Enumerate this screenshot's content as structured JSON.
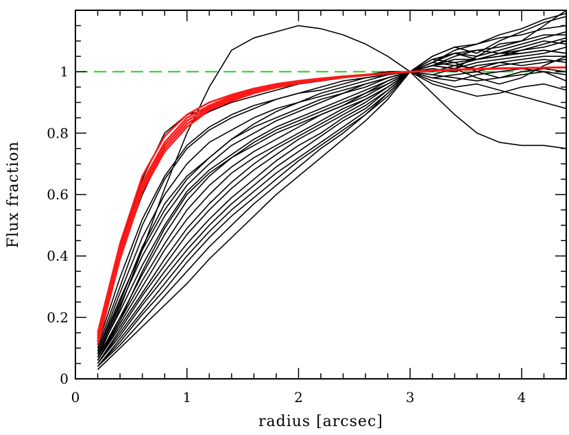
{
  "chart_data": {
    "type": "line",
    "title": "",
    "xlabel": "radius [arcsec]",
    "ylabel": "Flux fraction",
    "xlim": [
      0,
      4.4
    ],
    "ylim": [
      0,
      1.2
    ],
    "xticks": [
      0,
      1,
      2,
      3,
      4
    ],
    "yticks": [
      0,
      0.2,
      0.4,
      0.6,
      0.8,
      1
    ],
    "xtick_labels": [
      "0",
      "1",
      "2",
      "3",
      "4"
    ],
    "ytick_labels": [
      "0",
      "0.2",
      "0.4",
      "0.6",
      "0.8",
      "1"
    ],
    "grid": false,
    "legend": "none",
    "reference_line": {
      "y": 1.0,
      "style": "dashed",
      "color": "#22cc22"
    },
    "x": [
      0.2,
      0.4,
      0.6,
      0.8,
      1.0,
      1.2,
      1.4,
      1.6,
      1.8,
      2.0,
      2.2,
      2.4,
      2.6,
      2.8,
      3.0,
      3.2,
      3.4,
      3.6,
      3.8,
      4.0,
      4.2,
      4.4
    ],
    "black_series": [
      {
        "values": [
          0.14,
          0.43,
          0.65,
          0.8,
          0.86,
          0.88,
          0.91,
          0.93,
          0.95,
          0.96,
          0.97,
          0.98,
          0.99,
          1.0,
          1.0,
          1.03,
          1.06,
          1.04,
          1.05,
          1.06,
          1.07,
          1.06
        ]
      },
      {
        "values": [
          0.12,
          0.4,
          0.6,
          0.75,
          0.83,
          0.87,
          0.9,
          0.92,
          0.94,
          0.96,
          0.97,
          0.98,
          0.99,
          1.0,
          1.0,
          1.02,
          1.01,
          1.05,
          1.09,
          1.1,
          1.12,
          1.12
        ]
      },
      {
        "values": [
          0.11,
          0.33,
          0.52,
          0.66,
          0.76,
          0.82,
          0.86,
          0.89,
          0.91,
          0.93,
          0.95,
          0.97,
          0.98,
          0.99,
          1.0,
          1.04,
          1.03,
          1.0,
          1.02,
          1.03,
          1.04,
          1.03
        ]
      },
      {
        "values": [
          0.1,
          0.3,
          0.5,
          0.65,
          0.75,
          0.81,
          0.85,
          0.88,
          0.91,
          0.93,
          0.94,
          0.96,
          0.98,
          0.99,
          1.0,
          0.96,
          0.94,
          0.92,
          0.93,
          0.95,
          0.96,
          0.94
        ]
      },
      {
        "values": [
          0.09,
          0.28,
          0.46,
          0.6,
          0.7,
          0.77,
          0.81,
          0.85,
          0.88,
          0.9,
          0.93,
          0.95,
          0.97,
          0.99,
          1.0,
          1.05,
          1.08,
          1.06,
          1.1,
          1.13,
          1.16,
          1.18
        ]
      },
      {
        "values": [
          0.09,
          0.26,
          0.42,
          0.55,
          0.65,
          0.72,
          0.78,
          0.82,
          0.85,
          0.88,
          0.91,
          0.93,
          0.96,
          0.98,
          1.0,
          1.02,
          1.05,
          1.07,
          1.08,
          1.1,
          1.15,
          1.2
        ]
      },
      {
        "values": [
          0.08,
          0.24,
          0.4,
          0.53,
          0.63,
          0.7,
          0.76,
          0.8,
          0.84,
          0.87,
          0.9,
          0.93,
          0.95,
          0.98,
          1.0,
          0.98,
          0.97,
          0.99,
          1.0,
          1.01,
          1.0,
          0.99
        ]
      },
      {
        "values": [
          0.08,
          0.22,
          0.37,
          0.5,
          0.61,
          0.68,
          0.73,
          0.78,
          0.82,
          0.85,
          0.88,
          0.91,
          0.94,
          0.97,
          1.0,
          1.03,
          1.06,
          1.07,
          1.06,
          1.08,
          1.1,
          1.09
        ]
      },
      {
        "values": [
          0.07,
          0.2,
          0.34,
          0.47,
          0.58,
          0.66,
          0.72,
          0.77,
          0.81,
          0.84,
          0.87,
          0.9,
          0.93,
          0.97,
          1.0,
          0.99,
          1.01,
          1.03,
          1.04,
          1.05,
          1.06,
          1.08
        ]
      },
      {
        "values": [
          0.07,
          0.19,
          0.32,
          0.44,
          0.55,
          0.63,
          0.69,
          0.74,
          0.78,
          0.82,
          0.86,
          0.89,
          0.92,
          0.96,
          1.0,
          0.97,
          0.95,
          0.96,
          0.94,
          0.92,
          0.9,
          0.88
        ]
      },
      {
        "values": [
          0.06,
          0.18,
          0.3,
          0.42,
          0.52,
          0.6,
          0.67,
          0.72,
          0.76,
          0.8,
          0.84,
          0.88,
          0.91,
          0.95,
          1.0,
          1.02,
          1.04,
          1.04,
          1.05,
          1.07,
          1.09,
          1.11
        ]
      },
      {
        "values": [
          0.06,
          0.17,
          0.28,
          0.39,
          0.49,
          0.57,
          0.64,
          0.7,
          0.75,
          0.79,
          0.83,
          0.87,
          0.91,
          0.95,
          1.0,
          1.01,
          1.0,
          1.02,
          1.03,
          1.02,
          1.03,
          1.04
        ]
      },
      {
        "values": [
          0.05,
          0.16,
          0.27,
          0.37,
          0.47,
          0.55,
          0.62,
          0.68,
          0.73,
          0.78,
          0.82,
          0.86,
          0.9,
          0.95,
          1.0,
          1.03,
          1.07,
          1.09,
          1.11,
          1.12,
          1.14,
          1.15
        ]
      },
      {
        "values": [
          0.05,
          0.15,
          0.25,
          0.35,
          0.44,
          0.52,
          0.59,
          0.65,
          0.71,
          0.76,
          0.8,
          0.85,
          0.89,
          0.94,
          1.0,
          0.98,
          0.99,
          1.0,
          0.98,
          0.99,
          1.0,
          0.97
        ]
      },
      {
        "values": [
          0.05,
          0.14,
          0.24,
          0.33,
          0.42,
          0.5,
          0.57,
          0.63,
          0.69,
          0.74,
          0.79,
          0.84,
          0.88,
          0.94,
          1.0,
          1.04,
          1.06,
          1.05,
          1.07,
          1.09,
          1.11,
          1.13
        ]
      },
      {
        "values": [
          0.04,
          0.13,
          0.22,
          0.31,
          0.4,
          0.48,
          0.55,
          0.61,
          0.67,
          0.72,
          0.77,
          0.82,
          0.87,
          0.93,
          1.0,
          1.0,
          1.02,
          1.01,
          1.03,
          1.04,
          1.05,
          1.05
        ]
      },
      {
        "values": [
          0.04,
          0.12,
          0.21,
          0.29,
          0.38,
          0.46,
          0.53,
          0.59,
          0.65,
          0.71,
          0.76,
          0.81,
          0.86,
          0.93,
          1.0,
          1.05,
          1.08,
          1.09,
          1.12,
          1.14,
          1.17,
          1.19
        ]
      },
      {
        "values": [
          0.04,
          0.11,
          0.19,
          0.27,
          0.35,
          0.43,
          0.5,
          0.57,
          0.63,
          0.69,
          0.75,
          0.8,
          0.86,
          0.92,
          1.0,
          0.99,
          0.98,
          0.97,
          0.98,
          1.0,
          1.01,
          1.0
        ]
      },
      {
        "values": [
          0.03,
          0.1,
          0.17,
          0.24,
          0.31,
          0.39,
          0.46,
          0.53,
          0.6,
          0.66,
          0.72,
          0.78,
          0.84,
          0.91,
          1.0,
          1.02,
          1.03,
          1.04,
          1.06,
          1.07,
          1.08,
          1.1
        ]
      },
      {
        "values": [
          0.07,
          0.23,
          0.42,
          0.62,
          0.8,
          0.95,
          1.07,
          1.11,
          1.13,
          1.15,
          1.14,
          1.12,
          1.09,
          1.05,
          1.0,
          0.93,
          0.86,
          0.8,
          0.77,
          0.76,
          0.76,
          0.75
        ]
      },
      {
        "values": [
          0.08,
          0.25,
          0.43,
          0.57,
          0.66,
          0.72,
          0.78,
          0.83,
          0.87,
          0.9,
          0.92,
          0.94,
          0.96,
          0.98,
          1.0,
          1.02,
          1.01,
          0.98,
          0.96,
          0.98,
          1.02,
          1.05
        ]
      },
      {
        "values": [
          0.06,
          0.19,
          0.35,
          0.49,
          0.6,
          0.67,
          0.72,
          0.76,
          0.8,
          0.83,
          0.86,
          0.89,
          0.93,
          0.96,
          1.0,
          1.03,
          1.02,
          1.04,
          1.06,
          1.06,
          1.07,
          1.06
        ]
      }
    ],
    "red_series": [
      {
        "values": [
          0.15,
          0.44,
          0.66,
          0.79,
          0.86,
          0.9,
          0.925,
          0.945,
          0.96,
          0.97,
          0.978,
          0.985,
          0.99,
          0.995,
          1.0,
          1.003,
          1.006,
          1.008,
          1.01,
          1.012,
          1.013,
          1.014
        ]
      },
      {
        "values": [
          0.14,
          0.42,
          0.64,
          0.77,
          0.85,
          0.89,
          0.92,
          0.94,
          0.955,
          0.967,
          0.976,
          0.984,
          0.99,
          0.995,
          1.0,
          1.003,
          1.006,
          1.008,
          1.01,
          1.012,
          1.013,
          1.014
        ]
      },
      {
        "values": [
          0.13,
          0.41,
          0.63,
          0.76,
          0.84,
          0.885,
          0.915,
          0.937,
          0.952,
          0.965,
          0.975,
          0.983,
          0.989,
          0.995,
          1.0,
          1.004,
          1.007,
          1.009,
          1.011,
          1.012,
          1.013,
          1.014
        ]
      },
      {
        "values": [
          0.12,
          0.4,
          0.62,
          0.75,
          0.83,
          0.88,
          0.91,
          0.933,
          0.95,
          0.963,
          0.973,
          0.982,
          0.989,
          0.995,
          1.0,
          1.004,
          1.007,
          1.009,
          1.011,
          1.012,
          1.013,
          1.014
        ]
      },
      {
        "values": [
          0.11,
          0.39,
          0.61,
          0.74,
          0.82,
          0.875,
          0.905,
          0.93,
          0.948,
          0.962,
          0.972,
          0.981,
          0.988,
          0.994,
          1.0,
          1.004,
          1.007,
          1.009,
          1.011,
          1.012,
          1.013,
          1.014
        ]
      }
    ]
  }
}
